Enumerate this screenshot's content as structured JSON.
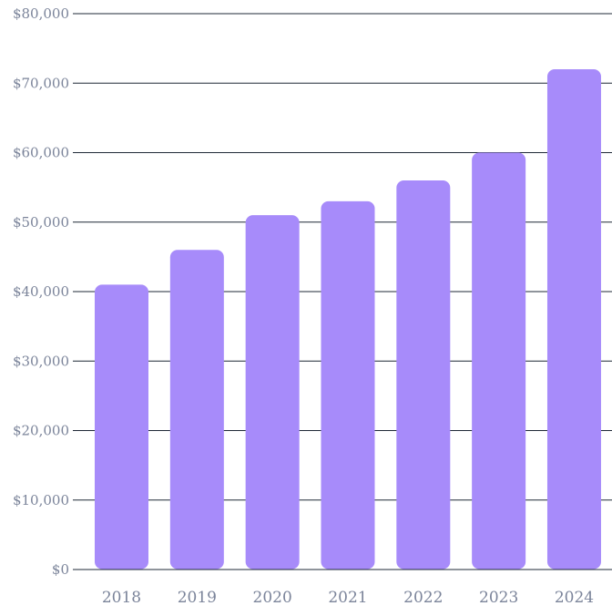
{
  "chart_data": {
    "type": "bar",
    "title": "",
    "xlabel": "",
    "ylabel": "",
    "categories": [
      "2018",
      "2019",
      "2020",
      "2021",
      "2022",
      "2023",
      "2024"
    ],
    "values": [
      41000,
      46000,
      51000,
      53000,
      56000,
      60000,
      72000
    ],
    "ylim": [
      0,
      80000
    ],
    "y_ticks": [
      0,
      10000,
      20000,
      30000,
      40000,
      50000,
      60000,
      70000,
      80000
    ],
    "y_tick_labels": [
      "$0",
      "$10,000",
      "$20,000",
      "$30,000",
      "$40,000",
      "$50,000",
      "$60,000",
      "$70,000",
      "$80,000"
    ],
    "grid": true,
    "legend": "none",
    "colors": {
      "bar": "#a78bfa",
      "grid": "#1f2937",
      "tick_label": "#7b849a"
    }
  }
}
